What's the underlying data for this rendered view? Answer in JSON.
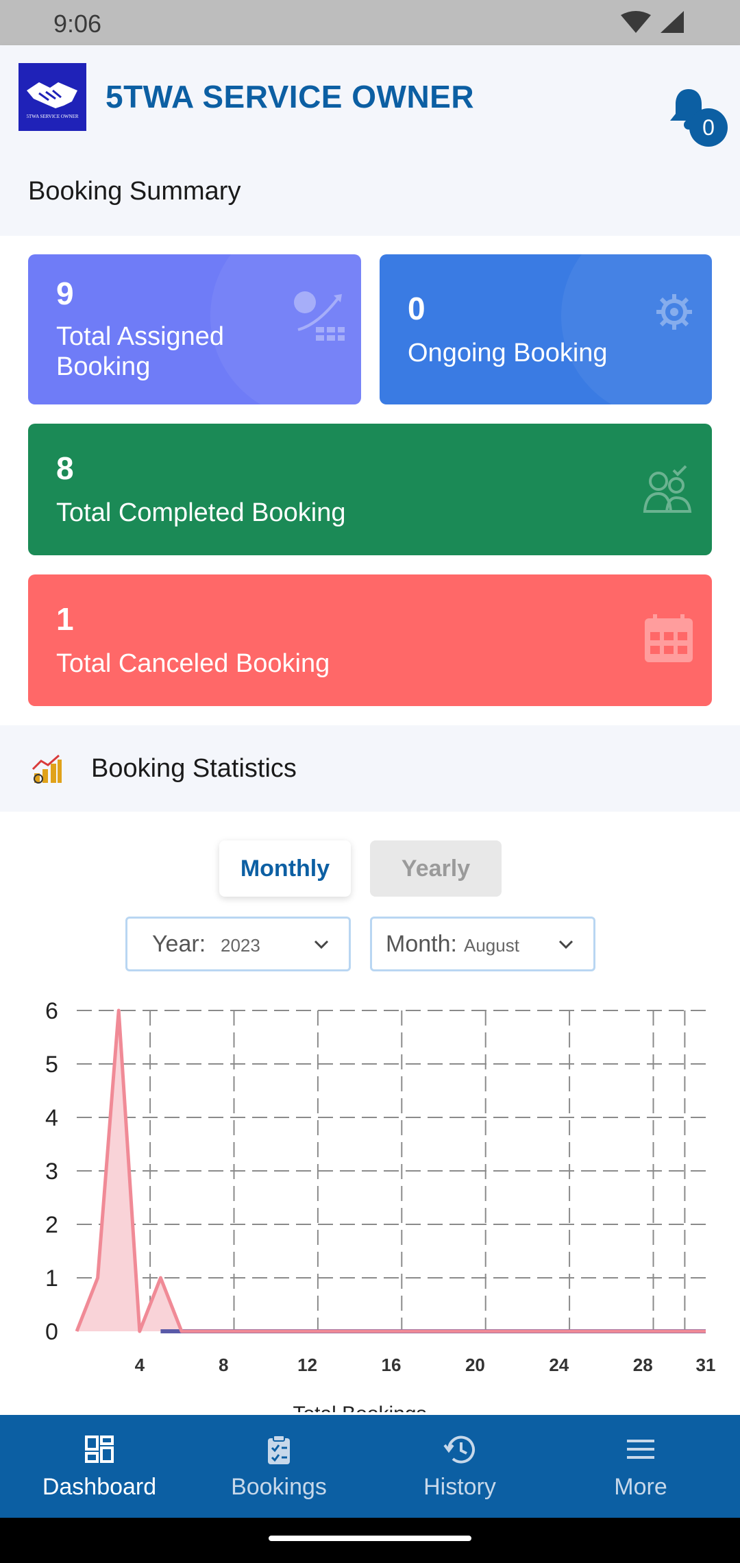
{
  "status_bar": {
    "time": "9:06"
  },
  "app_bar": {
    "title": "5TWA SERVICE OWNER",
    "logo_text": "5TWA SERVICE OWNER",
    "notification_count": "0"
  },
  "booking_summary": {
    "title": "Booking Summary",
    "cards": [
      {
        "value": "9",
        "label_line1": "Total Assigned",
        "label_line2": "Booking",
        "color": "#6f7cf7",
        "icon": "finance-growth-icon"
      },
      {
        "value": "0",
        "label": "Ongoing Booking",
        "color": "#3a7be3",
        "icon": "gear-icon"
      },
      {
        "value": "8",
        "label": "Total Completed Booking",
        "color": "#1b8a56",
        "icon": "users-check-icon"
      },
      {
        "value": "1",
        "label": "Total Canceled Booking",
        "color": "#ff6868",
        "icon": "calendar-icon"
      }
    ]
  },
  "booking_statistics": {
    "title": "Booking Statistics",
    "tabs": {
      "monthly": "Monthly",
      "yearly": "Yearly",
      "selected": "Monthly"
    },
    "year_label": "Year:",
    "year_value": "2023",
    "month_label": "Month:",
    "month_value": "August",
    "footer_label": "Total Bookings"
  },
  "chart_data": {
    "type": "area",
    "x": [
      1,
      2,
      3,
      4,
      5,
      6,
      7,
      8,
      9,
      10,
      11,
      12,
      13,
      14,
      15,
      16,
      17,
      18,
      19,
      20,
      21,
      22,
      23,
      24,
      25,
      26,
      27,
      28,
      29,
      30,
      31
    ],
    "series": [
      {
        "name": "Total Bookings",
        "values": [
          0,
          1,
          6,
          0,
          1,
          0,
          0,
          0,
          0,
          0,
          0,
          0,
          0,
          0,
          0,
          0,
          0,
          0,
          0,
          0,
          0,
          0,
          0,
          0,
          0,
          0,
          0,
          0,
          0,
          0,
          0
        ]
      }
    ],
    "y_ticks": [
      "0",
      "1",
      "2",
      "3",
      "4",
      "5",
      "6"
    ],
    "x_ticks": [
      "4",
      "8",
      "12",
      "16",
      "20",
      "24",
      "28",
      "31"
    ],
    "ylim": [
      0,
      6
    ],
    "xlim": [
      1,
      31
    ],
    "grid": true,
    "line_color": "#f08a96",
    "fill_color": "#f9d3d8"
  },
  "bottom_nav": {
    "items": [
      {
        "label": "Dashboard",
        "icon": "dashboard-icon",
        "active": true
      },
      {
        "label": "Bookings",
        "icon": "clipboard-icon",
        "active": false
      },
      {
        "label": "History",
        "icon": "history-icon",
        "active": false
      },
      {
        "label": "More",
        "icon": "menu-icon",
        "active": false
      }
    ]
  }
}
